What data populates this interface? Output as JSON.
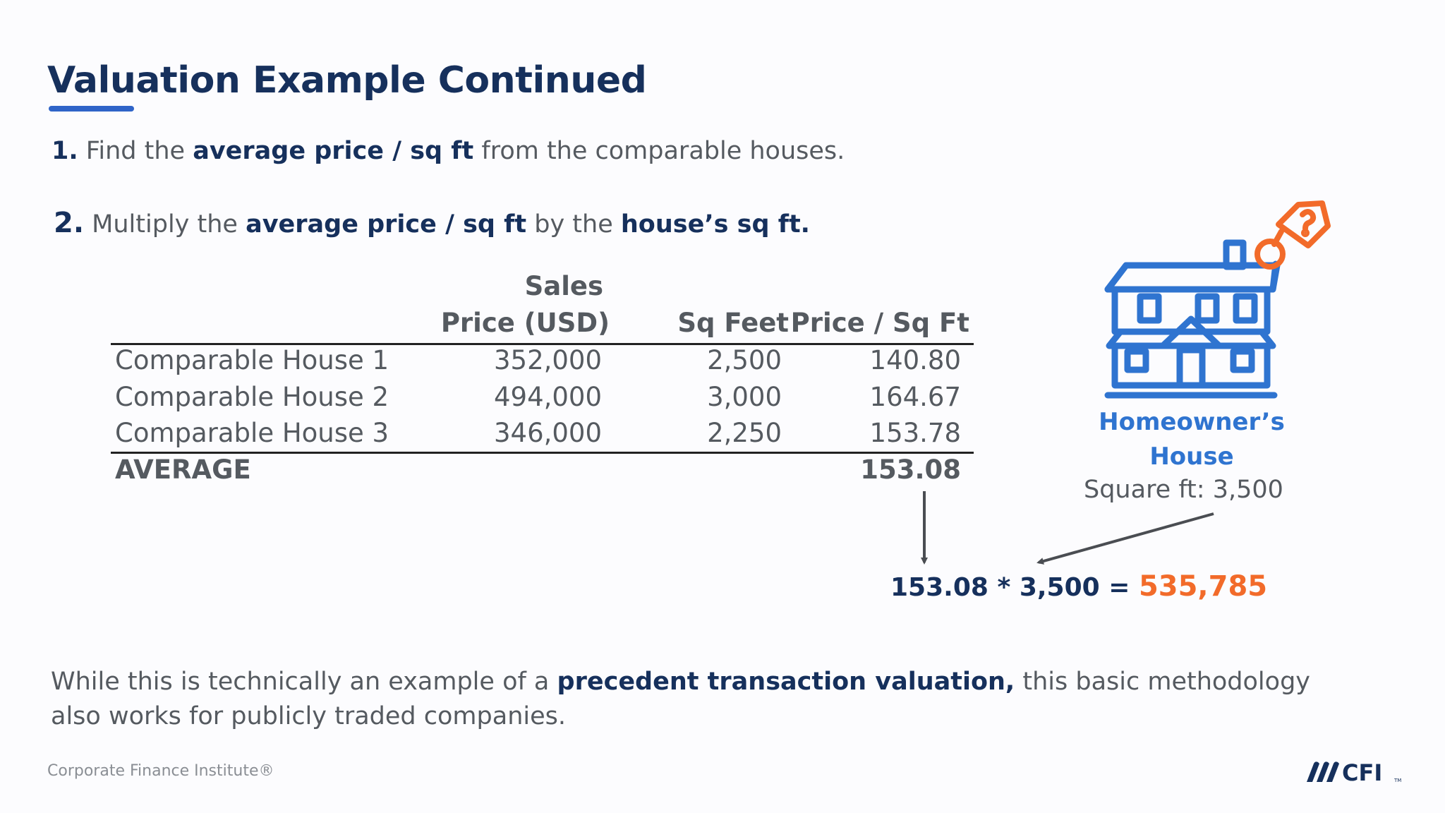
{
  "title": "Valuation Example Continued",
  "steps": [
    {
      "num": "1.",
      "pre": "Find the",
      "bold1": "average price / sq ft",
      "mid": "from the comparable houses.",
      "bold2": "",
      "post": ""
    },
    {
      "num": "2.",
      "pre": "Multiply the",
      "bold1": "average price / sq ft",
      "mid": "by the",
      "bold2": "house’s sq ft.",
      "post": ""
    }
  ],
  "table": {
    "headers": {
      "price_top": "Sales",
      "price_bottom": "Price (USD)",
      "sqft": "Sq Feet",
      "ppsf": "Price / Sq Ft"
    },
    "rows": [
      {
        "name": "Comparable House 1",
        "price": "352,000",
        "sqft": "2,500",
        "ppsf": "140.80"
      },
      {
        "name": "Comparable House 2",
        "price": "494,000",
        "sqft": "3,000",
        "ppsf": "164.67"
      },
      {
        "name": "Comparable House 3",
        "price": "346,000",
        "sqft": "2,250",
        "ppsf": "153.78"
      }
    ],
    "average": {
      "label": "AVERAGE",
      "ppsf": "153.08"
    }
  },
  "calculation": {
    "expr": "153.08 * 3,500 =",
    "result": "535,785"
  },
  "house": {
    "line1": "Homeowner’s",
    "line2": "House",
    "sqft": "Square ft: 3,500",
    "icon": "house-icon",
    "tag_icon": "price-tag-icon"
  },
  "footer": {
    "pre": "While this is technically an example of a",
    "bold": "precedent transaction valuation,",
    "post": "this basic methodology also works for publicly traded companies."
  },
  "brand": "Corporate Finance Institute®",
  "logo": {
    "text": "CFI",
    "tm": "TM"
  },
  "colors": {
    "navy": "#16305c",
    "blue": "#2f74d0",
    "orange": "#f26b2a",
    "gray": "#555a60"
  }
}
